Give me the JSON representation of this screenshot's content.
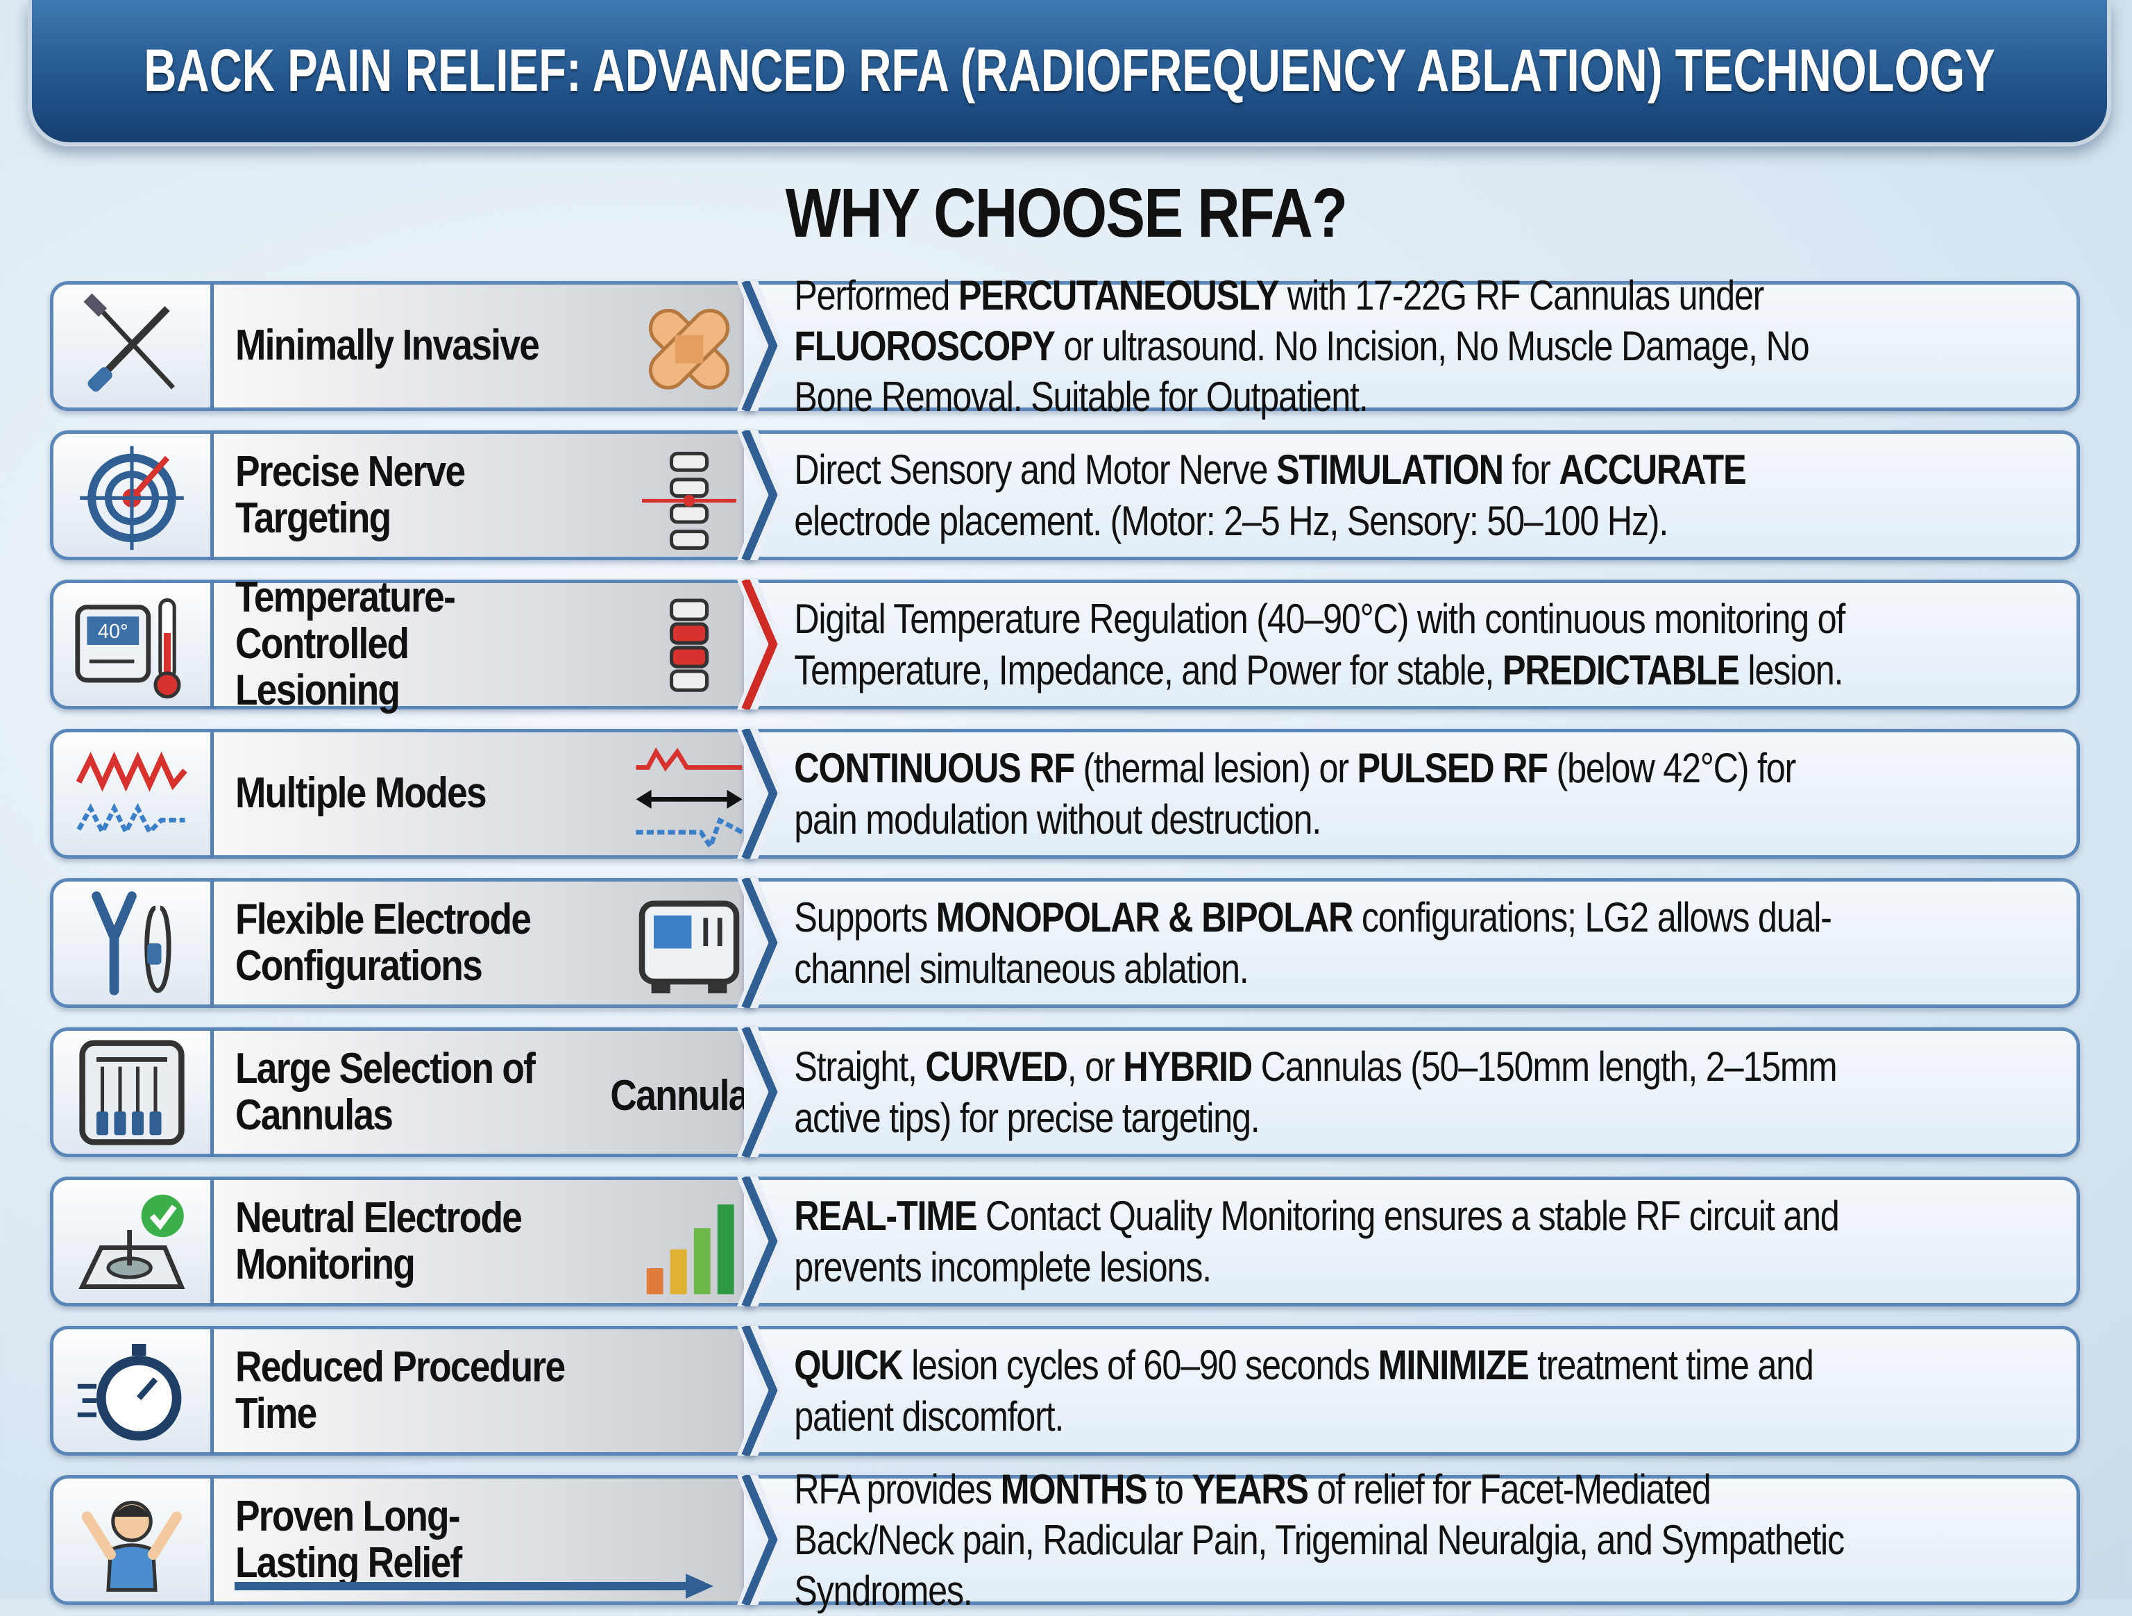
{
  "header": {
    "title": "BACK PAIN RELIEF: ADVANCED RFA (RADIOFREQUENCY ABLATION) TECHNOLOGY",
    "subtitle": "WHY CHOOSE RFA?"
  },
  "features": [
    {
      "title": "Minimally Invasive",
      "description": [
        {
          "text": "Performed "
        },
        {
          "text": "PERCUTANEOUSLY",
          "bold": true
        },
        {
          "text": " with 17-22G RF Cannulas under "
        },
        {
          "text": "FLUOROSCOPY",
          "bold": true
        },
        {
          "text": " or ultrasound. No Incision, No Muscle Damage, No Bone Removal. Suitable for Outpatient."
        }
      ]
    },
    {
      "title": "Precise Nerve Targeting",
      "description": [
        {
          "text": "Direct Sensory and Motor Nerve "
        },
        {
          "text": "STIMULATION",
          "bold": true
        },
        {
          "text": " for "
        },
        {
          "text": "ACCURATE",
          "bold": true
        },
        {
          "text": " electrode placement. (Motor: 2–5 Hz, Sensory: 50–100 Hz)."
        }
      ]
    },
    {
      "title": "Temperature-Controlled Lesioning",
      "icon_text": "40°",
      "description": [
        {
          "text": "Digital Temperature Regulation (40–90°C) with continuous monitoring of Temperature, Impedance, and Power for stable, "
        },
        {
          "text": "PREDICTABLE",
          "bold": true
        },
        {
          "text": " lesion."
        }
      ]
    },
    {
      "title": "Multiple Modes",
      "description": [
        {
          "text": "CONTINUOUS RF",
          "bold": true
        },
        {
          "text": " (thermal lesion) or "
        },
        {
          "text": "PULSED RF",
          "bold": true
        },
        {
          "text": " (below 42°C) for pain modulation without destruction."
        }
      ]
    },
    {
      "title": "Flexible Electrode Configurations",
      "description": [
        {
          "text": "Supports "
        },
        {
          "text": "MONOPOLAR & BIPOLAR",
          "bold": true
        },
        {
          "text": " configurations; LG2 allows dual-channel simultaneous ablation."
        }
      ]
    },
    {
      "title": "Large Selection of Cannulas",
      "side_label": "Cannulas",
      "description": [
        {
          "text": "Straight, "
        },
        {
          "text": "CURVED",
          "bold": true
        },
        {
          "text": ", or "
        },
        {
          "text": "HYBRID",
          "bold": true
        },
        {
          "text": " Cannulas (50–150mm length, 2–15mm active tips) for precise targeting."
        }
      ]
    },
    {
      "title": "Neutral Electrode Monitoring",
      "description": [
        {
          "text": "REAL-TIME",
          "bold": true
        },
        {
          "text": " Contact Quality Monitoring ensures a stable RF circuit and prevents incomplete lesions."
        }
      ]
    },
    {
      "title": "Reduced Procedure Time",
      "description": [
        {
          "text": "QUICK",
          "bold": true
        },
        {
          "text": " lesion cycles of 60–90 seconds "
        },
        {
          "text": "MINIMIZE",
          "bold": true
        },
        {
          "text": " treatment time and patient discomfort."
        }
      ]
    },
    {
      "title": "Proven Long-Lasting Relief",
      "description": [
        {
          "text": "RFA provides "
        },
        {
          "text": "MONTHS",
          "bold": true
        },
        {
          "text": " to "
        },
        {
          "text": "YEARS",
          "bold": true
        },
        {
          "text": " of relief for Facet-Mediated Back/Neck pain, Radicular Pain, Trigeminal Neuralgia, and Sympathetic Syndromes."
        }
      ]
    }
  ]
}
